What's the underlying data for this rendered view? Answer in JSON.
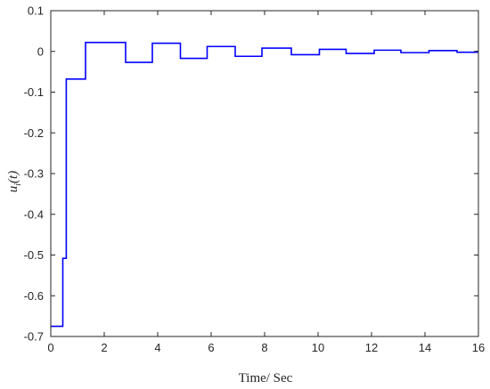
{
  "chart_data": {
    "type": "line",
    "step": true,
    "title": "",
    "xlabel": "Time/ Sec",
    "ylabel_base": "u",
    "ylabel_sub": "i",
    "ylabel_arg": "(t)",
    "xlim": [
      0,
      16
    ],
    "ylim": [
      -0.7,
      0.1
    ],
    "grid": false,
    "legend": "none",
    "line_color": "#0000ff",
    "xticks": [
      {
        "value": 0,
        "label": "0"
      },
      {
        "value": 2,
        "label": "2"
      },
      {
        "value": 4,
        "label": "4"
      },
      {
        "value": 6,
        "label": "6"
      },
      {
        "value": 8,
        "label": "8"
      },
      {
        "value": 10,
        "label": "10"
      },
      {
        "value": 12,
        "label": "12"
      },
      {
        "value": 14,
        "label": "14"
      },
      {
        "value": 16,
        "label": "16"
      }
    ],
    "yticks": [
      {
        "value": 0.1,
        "label": "0.1"
      },
      {
        "value": 0,
        "label": "0"
      },
      {
        "value": -0.1,
        "label": "-0.1"
      },
      {
        "value": -0.2,
        "label": "-0.2"
      },
      {
        "value": -0.3,
        "label": "-0.3"
      },
      {
        "value": -0.4,
        "label": "-0.4"
      },
      {
        "value": -0.5,
        "label": "-0.5"
      },
      {
        "value": -0.6,
        "label": "-0.6"
      },
      {
        "value": -0.7,
        "label": "-0.7"
      }
    ],
    "series": [
      {
        "x": [
          0,
          0.45,
          0.58,
          1.3,
          2.8,
          3.8,
          4.85,
          5.85,
          6.9,
          7.9,
          9.0,
          10.05,
          11.05,
          12.1,
          13.1,
          14.15,
          15.2,
          15.95
        ],
        "y": [
          -0.675,
          -0.508,
          -0.068,
          0.022,
          -0.027,
          0.02,
          -0.017,
          0.012,
          -0.012,
          0.008,
          -0.008,
          0.005,
          -0.005,
          0.003,
          -0.003,
          0.002,
          -0.002,
          0.0
        ],
        "x_end": 16
      }
    ]
  }
}
